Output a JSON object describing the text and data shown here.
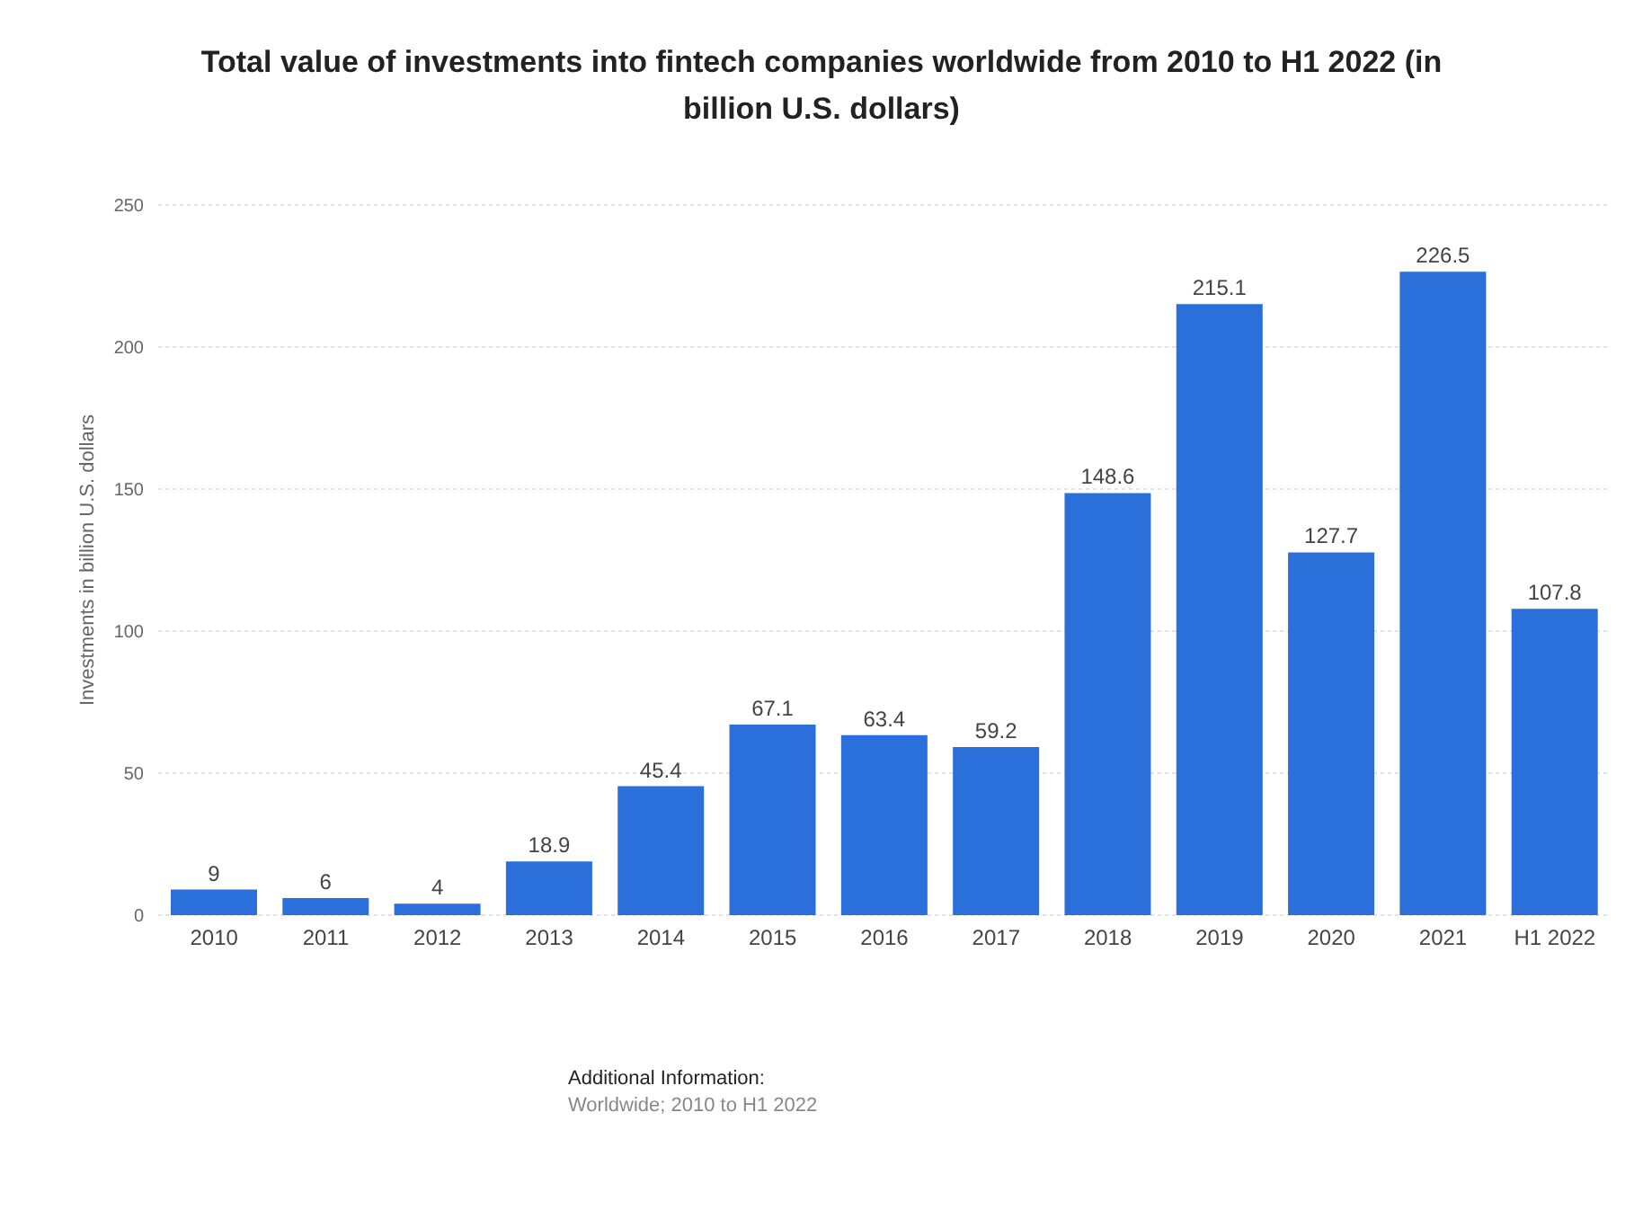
{
  "chart_data": {
    "type": "bar",
    "title": "Total value of investments into fintech companies worldwide from 2010 to H1 2022 (in billion U.S. dollars)",
    "ylabel": "Investments in billion U.S. dollars",
    "categories": [
      "2010",
      "2011",
      "2012",
      "2013",
      "2014",
      "2015",
      "2016",
      "2017",
      "2018",
      "2019",
      "2020",
      "2021",
      "H1 2022"
    ],
    "values": [
      9,
      6,
      4,
      18.9,
      45.4,
      67.1,
      63.4,
      59.2,
      148.6,
      215.1,
      127.7,
      226.5,
      107.8
    ],
    "color": "#2b6fdb",
    "ylim": [
      0,
      250
    ],
    "yticks": [
      0,
      50,
      100,
      150,
      200,
      250
    ],
    "grid": "y",
    "data_labels": true,
    "annotations": [
      "Additional Information:",
      "Worldwide; 2010 to H1 2022"
    ]
  }
}
